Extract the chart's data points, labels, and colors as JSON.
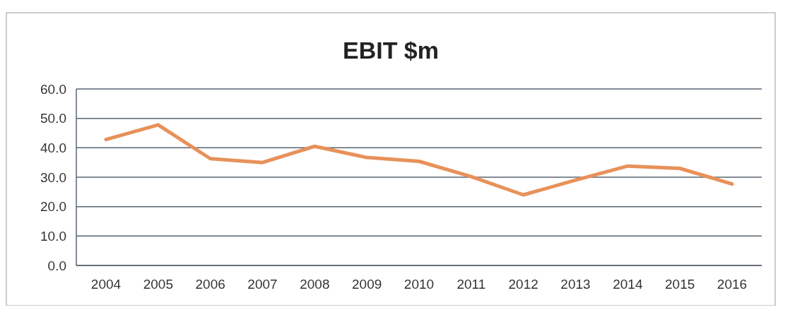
{
  "chart_data": {
    "type": "line",
    "title": "EBIT $m",
    "categories": [
      "2004",
      "2005",
      "2006",
      "2007",
      "2008",
      "2009",
      "2010",
      "2011",
      "2012",
      "2013",
      "2014",
      "2015",
      "2016"
    ],
    "series": [
      {
        "color": "#e8915a",
        "values": [
          42.8,
          47.8,
          36.3,
          35.0,
          40.5,
          36.7,
          35.4,
          30.2,
          24.0,
          29.0,
          33.8,
          33.0,
          27.7
        ]
      }
    ],
    "ylim": [
      0,
      60
    ],
    "yticks": [
      {
        "value": 0,
        "label": "0.0"
      },
      {
        "value": 10,
        "label": "10.0"
      },
      {
        "value": 20,
        "label": "20.0"
      },
      {
        "value": 30,
        "label": "30.0"
      },
      {
        "value": 40,
        "label": "40.0"
      },
      {
        "value": 50,
        "label": "50.0"
      },
      {
        "value": 60,
        "label": "60.0"
      }
    ],
    "grid": "y",
    "marker": "none",
    "line_style": "solid"
  }
}
